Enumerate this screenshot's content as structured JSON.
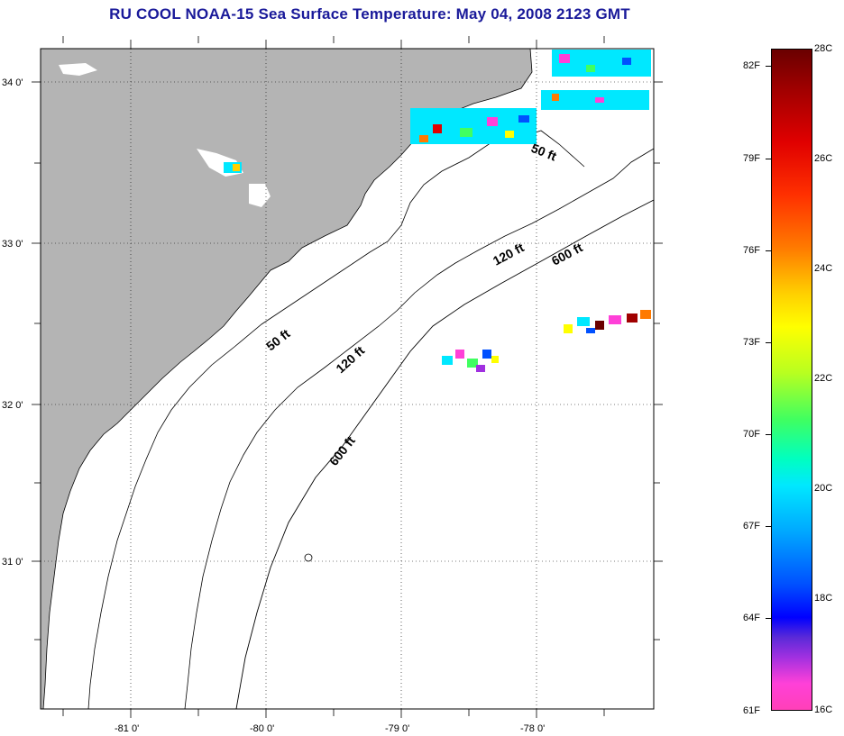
{
  "title": "RU COOL  NOAA-15  Sea Surface Temperature:  May 04, 2008 2123 GMT",
  "map": {
    "lat_labels": [
      "34 0'",
      "33 0'",
      "32 0'",
      "31 0'"
    ],
    "lon_labels": [
      "-81 0'",
      "-80 0'",
      "-79 0'",
      "-78 0'"
    ],
    "isobath_labels": [
      "50 ft",
      "50 ft",
      "120 ft",
      "120 ft",
      "600 ft",
      "600 ft"
    ],
    "colors": {
      "land": "#b4b4b4",
      "ocean": "#ffffff",
      "coast": "#000000"
    }
  },
  "colorbar": {
    "celsius": [
      "28C",
      "26C",
      "24C",
      "22C",
      "20C",
      "18C",
      "16C"
    ],
    "fahrenheit": [
      "82F",
      "79F",
      "76F",
      "73F",
      "70F",
      "67F",
      "64F",
      "61F"
    ]
  }
}
